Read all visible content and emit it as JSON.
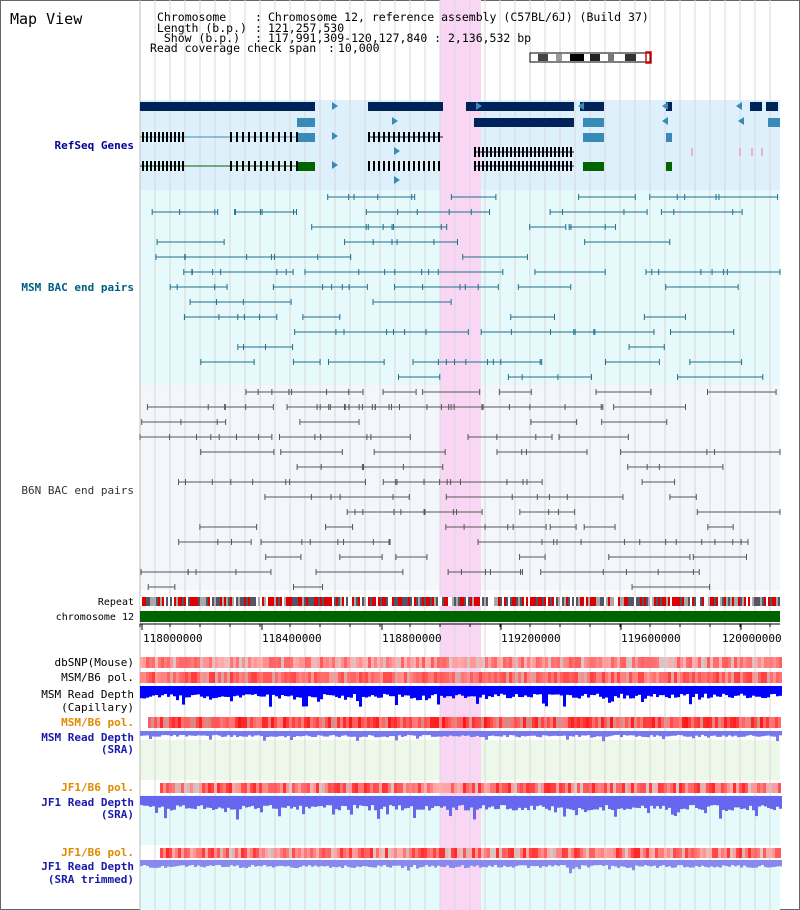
{
  "app": {
    "title": "Map View"
  },
  "header": {
    "chromosome_label": "Chromosome    ",
    "chromosome_value": "Chromosome 12, reference assembly (C57BL/6J) (Build 37)",
    "length_label": " Length (b.p.)",
    "length_value": "121,257,530",
    "show_label": "  Show (b.p.)",
    "show_value": "117,991,309-120,127,840 : 2,136,532 bp",
    "coverage_label": "Read coverage check span",
    "coverage_value": "10,000"
  },
  "tracks": {
    "refseq": "RefSeq Genes",
    "msm_bac": "MSM BAC end pairs",
    "b6n_bac": "B6N BAC end pairs",
    "repeat": "Repeat",
    "chromosome": "chromosome 12",
    "dbsnp": "dbSNP(Mouse)",
    "msm_b6_pol": "MSM/B6 pol.",
    "msm_read_depth_cap_1": "MSM Read Depth",
    "msm_read_depth_cap_2": "(Capillary)",
    "msm_b6_pol_2": "MSM/B6 pol.",
    "msm_read_depth_sra_1": "MSM Read Depth",
    "msm_read_depth_sra_2": "(SRA)",
    "jf1_b6_pol": "JF1/B6 pol.",
    "jf1_read_depth_sra_1": "JF1 Read Depth",
    "jf1_read_depth_sra_2": "(SRA)",
    "jf1_b6_pol_2": "JF1/B6 pol.",
    "jf1_read_depth_trim_1": "JF1 Read Depth",
    "jf1_read_depth_trim_2": "(SRA trimmed)"
  },
  "axis": {
    "ticks": [
      "118000000",
      "118400000",
      "118800000",
      "119200000",
      "119600000",
      "120000000"
    ]
  },
  "colors": {
    "refseq_bg": "#ddf0fb",
    "msm_bg": "#e6fafc",
    "b6n_bg": "#f3f6fb",
    "highlight": "#f9d6f3",
    "refseq_label": "#000099",
    "msm_label": "#006080",
    "b6n_label": "#333333",
    "pol_label": "#e08a00",
    "depth_label": "#1a1aaa",
    "chromosome_bar": "#006400",
    "dark_gene": "#00235a",
    "light_gene": "#3a8ab8",
    "green_gene": "#006400"
  }
}
